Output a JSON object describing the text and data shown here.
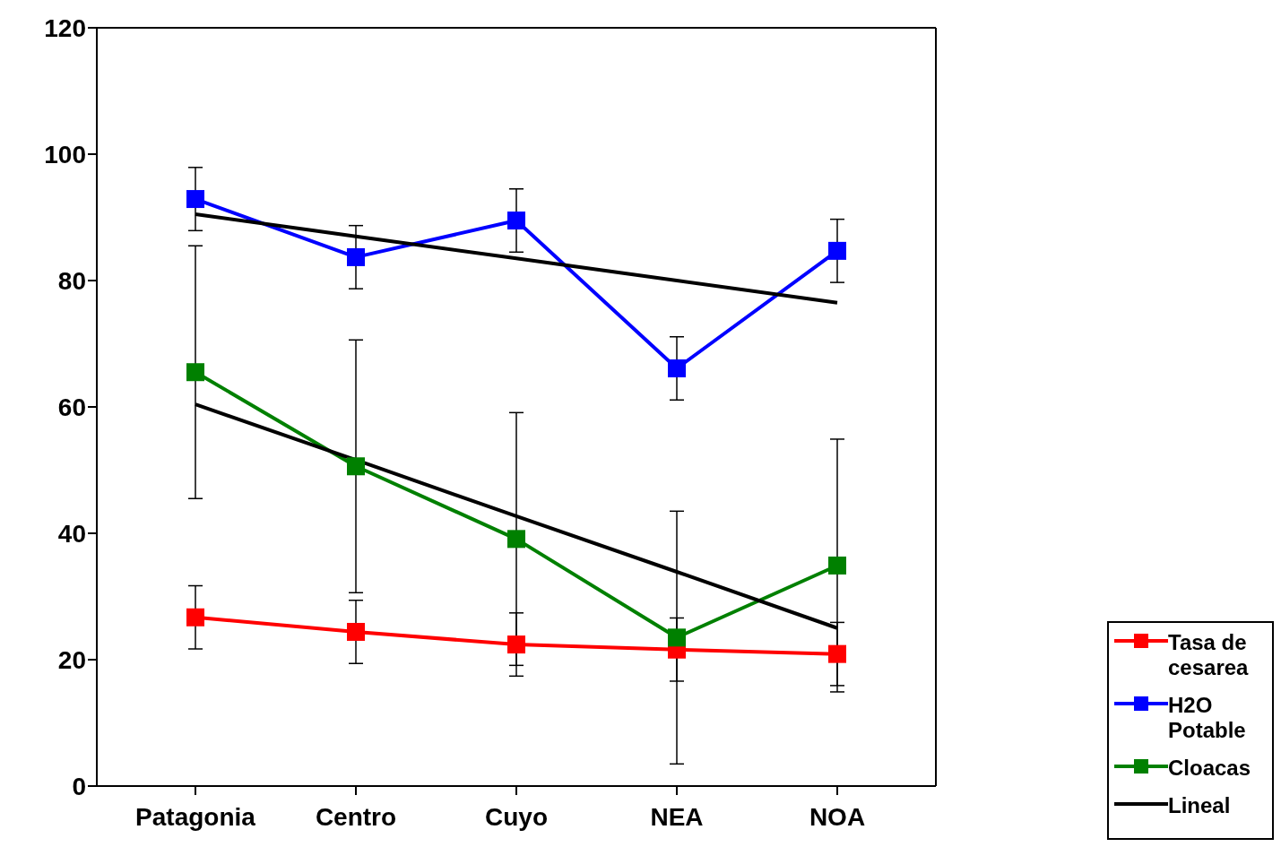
{
  "chart_data": {
    "type": "line",
    "categories": [
      "Patagonia",
      "Centro",
      "Cuyo",
      "NEA",
      "NOA"
    ],
    "ylim": [
      0,
      120
    ],
    "yticks": [
      0,
      20,
      40,
      60,
      80,
      100,
      120
    ],
    "legend": "right",
    "marker": "square",
    "line_style": "solid",
    "series": [
      {
        "name": "Tasa de cesarea",
        "color": "#ff0000",
        "values": [
          26.7,
          24.4,
          22.4,
          21.6,
          20.9
        ],
        "errors": [
          5,
          5,
          5,
          5,
          5
        ]
      },
      {
        "name": "H2O Potable",
        "color": "#0000ff",
        "values": [
          92.9,
          83.7,
          89.5,
          66.1,
          84.7
        ],
        "errors": [
          5,
          5,
          5,
          5,
          5
        ]
      },
      {
        "name": "Cloacas",
        "color": "#008000",
        "values": [
          65.5,
          50.6,
          39.1,
          23.5,
          34.9
        ],
        "errors": [
          20,
          20,
          20,
          20,
          20
        ]
      },
      {
        "name": "Lineal",
        "type": "line",
        "marker": "none",
        "color": "#000000",
        "values": [
          90.5,
          87,
          83.5,
          80,
          76.5
        ]
      },
      {
        "type": "line",
        "marker": "none",
        "color": "#000000",
        "values": [
          60.4,
          51.6,
          42.7,
          33.9,
          25.0
        ]
      }
    ]
  }
}
